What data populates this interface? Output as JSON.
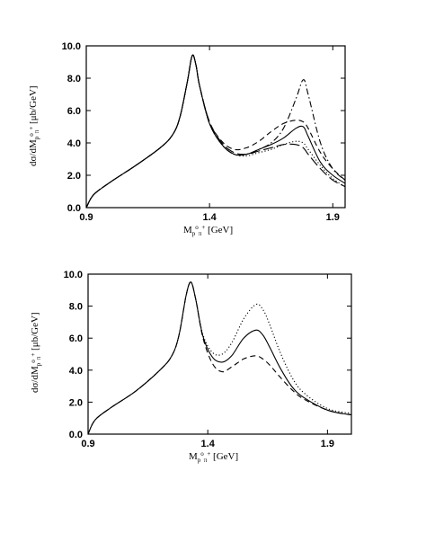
{
  "chart_data": [
    {
      "type": "line",
      "xlim": [
        0.9,
        1.95
      ],
      "ylim": [
        0.0,
        10.0
      ],
      "x_ticks": [
        0.9,
        1.4,
        1.9
      ],
      "x_tick_labels": [
        "0.9",
        "1.4",
        "1.9"
      ],
      "y_ticks": [
        0,
        2,
        4,
        6,
        8,
        10
      ],
      "y_tick_labels": [
        "0.0",
        "2.0",
        "4.0",
        "6.0",
        "8.0",
        "10.0"
      ],
      "xlabel": {
        "main": "M",
        "sub1": "p",
        "sup": "o",
        "sub2": "π",
        "sup2": "+",
        "unit": " [GeV]"
      },
      "ylabel": {
        "main": "dσ/dM",
        "sub1": "p",
        "sup": "o",
        "sub2": "π",
        "sup2": "+",
        "unit": " [μb/GeV]"
      },
      "grid": false,
      "series": [
        {
          "style": "solid",
          "x": [
            0.9,
            0.93,
            1.0,
            1.1,
            1.2,
            1.25,
            1.28,
            1.31,
            1.33,
            1.345,
            1.36,
            1.4,
            1.45,
            1.5,
            1.55,
            1.6,
            1.65,
            1.7,
            1.75,
            1.78,
            1.8,
            1.85,
            1.9,
            1.95
          ],
          "y": [
            0.0,
            0.8,
            1.6,
            2.6,
            3.7,
            4.5,
            5.6,
            7.8,
            9.4,
            8.8,
            7.5,
            5.2,
            3.9,
            3.3,
            3.3,
            3.6,
            3.9,
            4.3,
            4.9,
            5.0,
            4.4,
            2.8,
            2.0,
            1.5
          ]
        },
        {
          "style": "dash-dot",
          "x": [
            0.9,
            0.93,
            1.0,
            1.1,
            1.2,
            1.25,
            1.28,
            1.31,
            1.33,
            1.345,
            1.36,
            1.4,
            1.45,
            1.5,
            1.55,
            1.6,
            1.65,
            1.7,
            1.75,
            1.78,
            1.8,
            1.85,
            1.9,
            1.95
          ],
          "y": [
            0.0,
            0.8,
            1.6,
            2.6,
            3.7,
            4.5,
            5.6,
            7.8,
            9.4,
            8.8,
            7.5,
            5.2,
            3.9,
            3.3,
            3.3,
            3.6,
            4.0,
            4.9,
            6.7,
            7.9,
            7.0,
            4.0,
            2.4,
            1.7
          ]
        },
        {
          "style": "dashed",
          "x": [
            0.9,
            0.93,
            1.0,
            1.1,
            1.2,
            1.25,
            1.28,
            1.31,
            1.33,
            1.345,
            1.36,
            1.4,
            1.45,
            1.5,
            1.55,
            1.6,
            1.65,
            1.7,
            1.75,
            1.78,
            1.8,
            1.85,
            1.9,
            1.95
          ],
          "y": [
            0.0,
            0.8,
            1.6,
            2.6,
            3.7,
            4.5,
            5.6,
            7.8,
            9.4,
            8.8,
            7.5,
            5.3,
            4.1,
            3.6,
            3.7,
            4.1,
            4.7,
            5.2,
            5.4,
            5.3,
            4.9,
            3.4,
            2.4,
            1.7
          ]
        },
        {
          "style": "dotted",
          "x": [
            0.9,
            0.93,
            1.0,
            1.1,
            1.2,
            1.25,
            1.28,
            1.31,
            1.33,
            1.345,
            1.36,
            1.4,
            1.45,
            1.5,
            1.55,
            1.6,
            1.65,
            1.7,
            1.75,
            1.78,
            1.8,
            1.85,
            1.9,
            1.95
          ],
          "y": [
            0.0,
            0.8,
            1.6,
            2.6,
            3.7,
            4.5,
            5.6,
            7.8,
            9.4,
            8.8,
            7.5,
            5.2,
            3.9,
            3.3,
            3.2,
            3.4,
            3.6,
            3.9,
            4.1,
            4.0,
            3.6,
            2.6,
            1.8,
            1.3
          ]
        },
        {
          "style": "long-dash",
          "x": [
            0.9,
            0.93,
            1.0,
            1.1,
            1.2,
            1.25,
            1.28,
            1.31,
            1.33,
            1.345,
            1.36,
            1.4,
            1.45,
            1.5,
            1.55,
            1.6,
            1.65,
            1.7,
            1.75,
            1.78,
            1.8,
            1.85,
            1.9,
            1.95
          ],
          "y": [
            0.0,
            0.8,
            1.6,
            2.6,
            3.7,
            4.5,
            5.6,
            7.8,
            9.4,
            8.8,
            7.5,
            5.3,
            4.0,
            3.4,
            3.3,
            3.5,
            3.7,
            3.9,
            3.9,
            3.7,
            3.3,
            2.4,
            1.7,
            1.3
          ]
        }
      ]
    },
    {
      "type": "line",
      "xlim": [
        0.9,
        2.0
      ],
      "ylim": [
        0.0,
        10.0
      ],
      "x_ticks": [
        0.9,
        1.4,
        1.9
      ],
      "x_tick_labels": [
        "0.9",
        "1.4",
        "1.9"
      ],
      "y_ticks": [
        0,
        2,
        4,
        6,
        8,
        10
      ],
      "y_tick_labels": [
        "0.0",
        "2.0",
        "4.0",
        "6.0",
        "8.0",
        "10.0"
      ],
      "xlabel": {
        "main": "M",
        "sub1": "p",
        "sup": "o",
        "sub2": "π",
        "sup2": "+",
        "unit": " [GeV]"
      },
      "ylabel": {
        "main": "dσ/dM",
        "sub1": "p",
        "sup": "o",
        "sub2": "π",
        "sup2": "+",
        "unit": " [μb/GeV]"
      },
      "grid": false,
      "series": [
        {
          "style": "solid",
          "x": [
            0.9,
            0.93,
            1.0,
            1.1,
            1.2,
            1.25,
            1.28,
            1.31,
            1.33,
            1.35,
            1.38,
            1.42,
            1.46,
            1.5,
            1.55,
            1.6,
            1.63,
            1.66,
            1.7,
            1.75,
            1.8,
            1.9,
            2.0
          ],
          "y": [
            0.0,
            0.9,
            1.7,
            2.7,
            4.0,
            4.9,
            6.2,
            8.7,
            9.5,
            8.4,
            6.1,
            4.8,
            4.5,
            4.9,
            6.0,
            6.5,
            6.2,
            5.4,
            4.2,
            3.0,
            2.3,
            1.5,
            1.2
          ]
        },
        {
          "style": "dotted",
          "x": [
            0.9,
            0.93,
            1.0,
            1.1,
            1.2,
            1.25,
            1.28,
            1.31,
            1.33,
            1.35,
            1.38,
            1.42,
            1.46,
            1.5,
            1.55,
            1.6,
            1.63,
            1.66,
            1.7,
            1.75,
            1.8,
            1.9,
            2.0
          ],
          "y": [
            0.0,
            0.9,
            1.7,
            2.7,
            4.0,
            4.9,
            6.2,
            8.7,
            9.5,
            8.4,
            6.2,
            5.1,
            5.0,
            5.7,
            7.2,
            8.1,
            7.8,
            6.8,
            5.2,
            3.6,
            2.6,
            1.6,
            1.3
          ]
        },
        {
          "style": "dashed",
          "x": [
            0.9,
            0.93,
            1.0,
            1.1,
            1.2,
            1.25,
            1.28,
            1.31,
            1.33,
            1.35,
            1.38,
            1.42,
            1.46,
            1.5,
            1.55,
            1.6,
            1.63,
            1.66,
            1.7,
            1.75,
            1.8,
            1.9,
            2.0
          ],
          "y": [
            0.0,
            0.9,
            1.7,
            2.7,
            4.0,
            4.9,
            6.2,
            8.7,
            9.5,
            8.4,
            6.0,
            4.4,
            3.9,
            4.2,
            4.7,
            4.9,
            4.7,
            4.3,
            3.6,
            2.8,
            2.2,
            1.5,
            1.2
          ]
        }
      ]
    }
  ]
}
